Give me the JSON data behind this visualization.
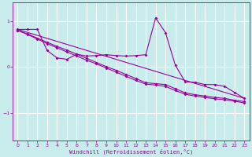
{
  "xlabel": "Windchill (Refroidissement éolien,°C)",
  "bg_color": "#c8ecec",
  "grid_color": "#ffffff",
  "line_color": "#990099",
  "xlim": [
    -0.5,
    23.5
  ],
  "ylim": [
    -1.6,
    1.4
  ],
  "yticks": [
    -1,
    0,
    1
  ],
  "xticks": [
    0,
    1,
    2,
    3,
    4,
    5,
    6,
    7,
    8,
    9,
    10,
    11,
    12,
    13,
    14,
    15,
    16,
    17,
    18,
    19,
    20,
    21,
    22,
    23
  ],
  "line1_x": [
    0,
    1,
    2,
    3,
    4,
    5,
    6,
    7,
    8,
    9,
    10,
    11,
    12,
    13,
    14,
    15,
    16,
    17,
    18,
    19,
    20,
    21,
    22,
    23
  ],
  "line1_y": [
    0.82,
    0.82,
    0.82,
    0.36,
    0.2,
    0.17,
    0.28,
    0.24,
    0.25,
    0.27,
    0.25,
    0.24,
    0.25,
    0.27,
    1.07,
    0.75,
    0.04,
    -0.32,
    -0.33,
    -0.38,
    -0.38,
    -0.42,
    -0.55,
    -0.68
  ],
  "line2_x": [
    0,
    1,
    2,
    3,
    4,
    5,
    6,
    7,
    8,
    9,
    10,
    11,
    12,
    13,
    14,
    15,
    16,
    17,
    18,
    19,
    20,
    21,
    22,
    23
  ],
  "line2_y": [
    0.8,
    0.72,
    0.63,
    0.54,
    0.45,
    0.37,
    0.28,
    0.19,
    0.1,
    0.01,
    -0.07,
    -0.16,
    -0.25,
    -0.34,
    -0.36,
    -0.38,
    -0.47,
    -0.56,
    -0.6,
    -0.63,
    -0.66,
    -0.68,
    -0.72,
    -0.75
  ],
  "line3_x": [
    0,
    1,
    2,
    3,
    4,
    5,
    6,
    7,
    8,
    9,
    10,
    11,
    12,
    13,
    14,
    15,
    16,
    17,
    18,
    19,
    20,
    21,
    22,
    23
  ],
  "line3_y": [
    0.8,
    0.71,
    0.61,
    0.51,
    0.42,
    0.33,
    0.24,
    0.15,
    0.07,
    -0.02,
    -0.11,
    -0.2,
    -0.29,
    -0.37,
    -0.39,
    -0.42,
    -0.51,
    -0.59,
    -0.63,
    -0.66,
    -0.69,
    -0.71,
    -0.74,
    -0.78
  ],
  "line4_x": [
    0,
    23
  ],
  "line4_y": [
    0.82,
    -0.68
  ]
}
